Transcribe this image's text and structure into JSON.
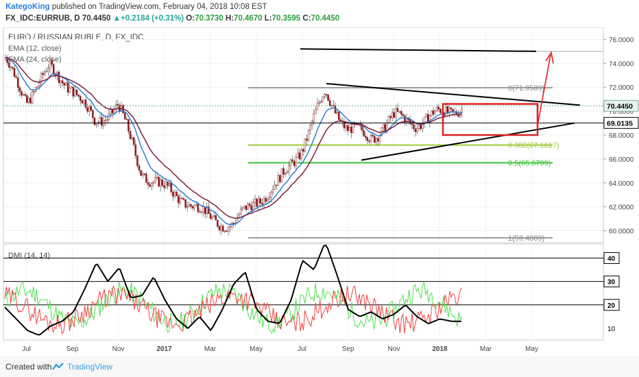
{
  "header": {
    "author": "KategoKing",
    "published": "published on TradingView.com, February 04, 2018 10:08 EST",
    "symbol": "FX_IDC:EURRUB, D",
    "last": "70.4450",
    "change": "+0.2184 (+0.31%)",
    "open_label": "O:",
    "open": "70.3730",
    "high_label": "H:",
    "high": "70.4670",
    "low_label": "L:",
    "low": "70.3595",
    "close_label": "C:",
    "close": "70.4450"
  },
  "chart_data": [
    {
      "type": "candlestick",
      "title": "EURO / RUSSIAN RUBLE, D, FX_IDC",
      "legend": [
        "EMA (12, close)",
        "EMA (24, close)"
      ],
      "x_ticks": [
        "Jul",
        "Sep",
        "Nov",
        "2017",
        "Mar",
        "May",
        "Jul",
        "Sep",
        "Nov",
        "2018",
        "Mar",
        "May"
      ],
      "y_ticks": [
        "60.0000",
        "62.0000",
        "64.0000",
        "66.0000",
        "68.0000",
        "70.0000",
        "72.0000",
        "74.0000",
        "76.0000"
      ],
      "ylim": [
        59.0,
        77.0
      ],
      "path_points_approx": [
        [
          "2016-06",
          74.5
        ],
        [
          "2016-07",
          71.0
        ],
        [
          "2016-08",
          73.5
        ],
        [
          "2016-09",
          72.0
        ],
        [
          "2016-10",
          69.0
        ],
        [
          "2016-11",
          70.5
        ],
        [
          "2016-12",
          65.0
        ],
        [
          "2017-01",
          63.5
        ],
        [
          "2017-02",
          62.5
        ],
        [
          "2017-03",
          61.0
        ],
        [
          "2017-04",
          60.5
        ],
        [
          "2017-05",
          62.5
        ],
        [
          "2017-06",
          64.0
        ],
        [
          "2017-07",
          67.0
        ],
        [
          "2017-08",
          71.5
        ],
        [
          "2017-09",
          68.5
        ],
        [
          "2017-10",
          67.8
        ],
        [
          "2017-11",
          69.5
        ],
        [
          "2017-12",
          69.0
        ],
        [
          "2018-01",
          69.8
        ],
        [
          "2018-02",
          70.4
        ]
      ],
      "price_labels": [
        "70.4450",
        "69.0135"
      ],
      "fib_levels": [
        {
          "label": "0(71.9589)",
          "value": 71.9589
        },
        {
          "label": "0.382(67.1617)",
          "value": 67.1617
        },
        {
          "label": "0.5(65.6799)",
          "value": 65.6799
        },
        {
          "label": "1(59.4009)",
          "value": 59.4009
        }
      ],
      "colors": {
        "ema12": "#2f7fd0",
        "ema24": "#7a1f3d",
        "candle": "#8b1a1a",
        "fib_grey": "#9e9e9e",
        "fib_lime": "#9ccc3a",
        "fib_green": "#3cc23c",
        "box": "#e02020"
      }
    },
    {
      "type": "line",
      "title": "DMI (14, 14)",
      "y_ticks": [
        "10",
        "20",
        "30",
        "40"
      ],
      "ylim": [
        5,
        46
      ],
      "series_colors": {
        "adx": "#000000",
        "plus_di": "#4ee04e",
        "minus_di": "#f04040"
      },
      "adx_approx": [
        19,
        14,
        9,
        7,
        11,
        13,
        17,
        27,
        38,
        30,
        36,
        23,
        24,
        32,
        22,
        14,
        10,
        15,
        9,
        18,
        29,
        34,
        18,
        13,
        12,
        22,
        39,
        35,
        47,
        33,
        18,
        15,
        17,
        14,
        16,
        20,
        15,
        12,
        14,
        13,
        13
      ]
    }
  ],
  "footer": {
    "created_with": "Created with",
    "brand": "TradingView"
  }
}
